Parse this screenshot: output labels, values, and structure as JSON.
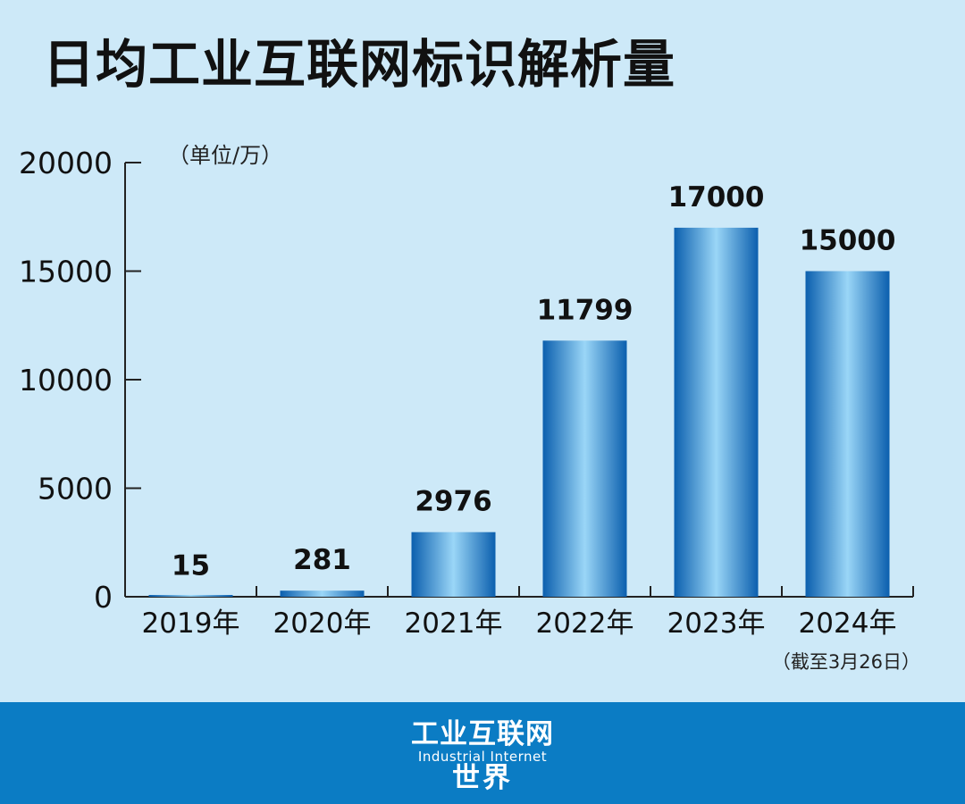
{
  "title": "日均工业互联网标识解析量",
  "unit_label": "（单位/万）",
  "footnote": "（截至3月26日）",
  "colors": {
    "background": "#cde9f8",
    "bar_dark": "#0b5fae",
    "bar_light": "#9ad6f7",
    "footer": "#0b7cc4"
  },
  "footer_logo": {
    "line1": "工业互联网",
    "line2": "Industrial Internet",
    "line3": "世界"
  },
  "chart_data": {
    "type": "bar",
    "categories": [
      "2019年",
      "2020年",
      "2021年",
      "2022年",
      "2023年",
      "2024年"
    ],
    "values": [
      15,
      281,
      2976,
      11799,
      17000,
      15000
    ],
    "data_labels": [
      "15",
      "281",
      "2976",
      "11799",
      "17000",
      "15000"
    ],
    "y_ticks": [
      "0",
      "5000",
      "10000",
      "15000",
      "20000"
    ],
    "ylim": [
      0,
      20000
    ],
    "ylabel": "（单位/万）",
    "xlabel": "",
    "grid": false,
    "legend": "none"
  }
}
